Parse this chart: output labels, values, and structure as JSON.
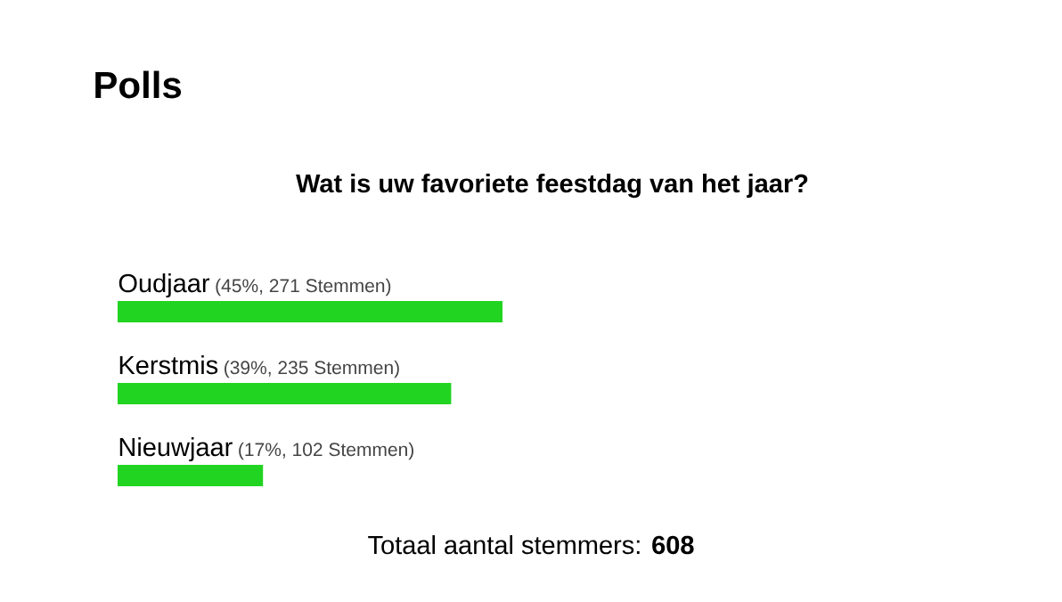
{
  "chart_data": {
    "type": "bar",
    "orientation": "horizontal",
    "title": "Polls",
    "subtitle": "Wat is uw favoriete feestdag van het jaar?",
    "categories": [
      "Oudjaar",
      "Kerstmis",
      "Nieuwjaar"
    ],
    "values": [
      45,
      39,
      17
    ],
    "value_labels": [
      "(45%, 271 Stemmen)",
      "(39%, 235 Stemmen)",
      "(17%, 102 Stemmen)"
    ],
    "color": "#22d422",
    "annotations": [
      "Totaal aantal stemmers: **608**"
    ]
  }
}
